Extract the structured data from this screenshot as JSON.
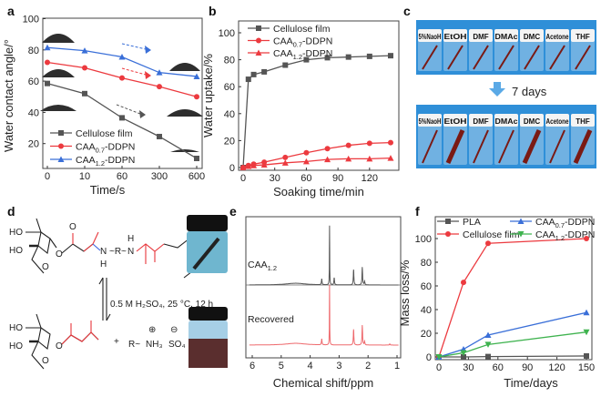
{
  "panels": {
    "a": "a",
    "b": "b",
    "c": "c",
    "d": "d",
    "e": "e",
    "f": "f"
  },
  "colors": {
    "gray": "#555555",
    "red": "#ec3a3f",
    "blue": "#3a6fd8",
    "green": "#3fb34f",
    "photo_bg": "#2f8fd8",
    "pink": "#ee6a6e",
    "chem_red": "#e8363b",
    "chem_blue": "#3a63e0"
  },
  "chart_data": [
    {
      "panel": "a",
      "type": "line",
      "xlabel": "Time/s",
      "ylabel": "Water contact angle/°",
      "categories": [
        "0",
        "10",
        "60",
        "300",
        "600"
      ],
      "ylim": [
        0,
        100
      ],
      "yticks": [
        20,
        40,
        60,
        80,
        100
      ],
      "legend": "bottom-left",
      "series": [
        {
          "name": "Cellulose film",
          "sub": "",
          "suffix": "",
          "color": "#555555",
          "marker": "square",
          "values": [
            58.5,
            52,
            36.5,
            24.5,
            10.5
          ]
        },
        {
          "name": "CAA",
          "sub": "0.7",
          "suffix": "-DDPN",
          "color": "#ec3a3f",
          "marker": "circle",
          "values": [
            72,
            68.5,
            62,
            56.5,
            50
          ]
        },
        {
          "name": "CAA",
          "sub": "1.2",
          "suffix": "-DDPN",
          "color": "#3a6fd8",
          "marker": "triangle",
          "values": [
            81.5,
            79.5,
            75.5,
            65.5,
            63
          ]
        }
      ]
    },
    {
      "panel": "b",
      "type": "line",
      "xlabel": "Soaking time/min",
      "ylabel": "Water uptake/%",
      "x": [
        0,
        5,
        10,
        20,
        40,
        60,
        80,
        100,
        120,
        140
      ],
      "xticks": [
        0,
        30,
        60,
        90,
        120
      ],
      "yticks": [
        0,
        20,
        40,
        60,
        80,
        100
      ],
      "xlim": [
        0,
        148
      ],
      "ylim": [
        0,
        110
      ],
      "legend": "top-left",
      "series": [
        {
          "name": "Cellulose film",
          "sub": "",
          "suffix": "",
          "color": "#555555",
          "marker": "square",
          "values": [
            0,
            65.5,
            69,
            71,
            76,
            80,
            81.5,
            82,
            82.5,
            83
          ]
        },
        {
          "name": "CAA",
          "sub": "0.7",
          "suffix": "-DDPN",
          "color": "#ec3a3f",
          "marker": "circle",
          "values": [
            0,
            1.5,
            2.5,
            4,
            7.5,
            11,
            14,
            16.5,
            18,
            18.5
          ]
        },
        {
          "name": "CAA",
          "sub": "1.2",
          "suffix": "-DDPN",
          "color": "#ec3a3f",
          "marker": "triangle",
          "values": [
            0,
            1,
            1.5,
            2,
            3.5,
            4.5,
            6,
            6.5,
            6.5,
            7
          ]
        }
      ]
    },
    {
      "panel": "e",
      "type": "line",
      "xlabel": "Chemical shift/ppm",
      "xticks": [
        6,
        5,
        4,
        3,
        2,
        1
      ],
      "xlim": [
        6.1,
        0.9
      ],
      "series": [
        {
          "name": "CAA",
          "sub": "1.2",
          "color": "#555555",
          "peaks": [
            {
              "ppm": 3.33,
              "h": 1.0
            },
            {
              "ppm": 3.6,
              "h": 0.1
            },
            {
              "ppm": 3.17,
              "h": 0.12
            },
            {
              "ppm": 2.5,
              "h": 0.26
            },
            {
              "ppm": 2.2,
              "h": 0.3
            },
            {
              "ppm": 2.12,
              "h": 0.06
            },
            {
              "ppm": 4.5,
              "h": 0.03
            }
          ]
        },
        {
          "name": "Recovered",
          "sub": "",
          "color": "#ee6a6e",
          "peaks": [
            {
              "ppm": 3.33,
              "h": 1.0
            },
            {
              "ppm": 3.6,
              "h": 0.1
            },
            {
              "ppm": 2.5,
              "h": 0.26
            },
            {
              "ppm": 2.2,
              "h": 0.33
            },
            {
              "ppm": 2.12,
              "h": 0.06
            },
            {
              "ppm": 1.25,
              "h": 0.02
            },
            {
              "ppm": 4.5,
              "h": 0.03
            }
          ]
        }
      ]
    },
    {
      "panel": "f",
      "type": "line",
      "xlabel": "Time/days",
      "ylabel": "Mass loss/%",
      "x": [
        0,
        25,
        50,
        150
      ],
      "xticks": [
        0,
        30,
        60,
        90,
        120,
        150
      ],
      "yticks": [
        0,
        20,
        40,
        60,
        80,
        100
      ],
      "xlim": [
        -4,
        155
      ],
      "ylim": [
        -2,
        112
      ],
      "legend": "top",
      "series": [
        {
          "name": "PLA",
          "sub": "",
          "suffix": "",
          "color": "#555555",
          "marker": "square",
          "values": [
            0,
            0,
            0.3,
            0.8
          ]
        },
        {
          "name": "Cellulose film",
          "sub": "",
          "suffix": "",
          "color": "#ec3a3f",
          "marker": "circle",
          "values": [
            0,
            63,
            96,
            100
          ]
        },
        {
          "name": "CAA",
          "sub": "0.7",
          "suffix": "-DDPN",
          "color": "#3a6fd8",
          "marker": "triangle",
          "values": [
            0,
            6.5,
            18.5,
            37.5
          ]
        },
        {
          "name": "CAA",
          "sub": "1.2",
          "suffix": "-DDPN",
          "color": "#3fb34f",
          "marker": "down-triangle",
          "values": [
            0,
            3.5,
            10.5,
            21
          ]
        }
      ]
    }
  ],
  "photo_c": {
    "solvents": [
      "5%NaoH",
      "EtOH",
      "DMF",
      "DMAc",
      "DMC",
      "Acetone",
      "THF"
    ],
    "arrow_label": "7 days"
  },
  "scheme_d": {
    "ho1": "HO",
    "ho2": "HO",
    "o_ring": "O",
    "o_link": "O",
    "o_carbonyl": "O",
    "nh_left": "N",
    "h_left": "H",
    "r_center": "~R~",
    "nh_right": "N",
    "h_right": "H",
    "oh": "OH",
    "conditions": "0.5 M H₂SO₄, 25 °C, 12 h",
    "plus": "+",
    "amine_r": "R~",
    "amine": "NH₃",
    "sulfate": "SO₄",
    "plus_charge": "⊕",
    "minus_charge": "⊖"
  }
}
